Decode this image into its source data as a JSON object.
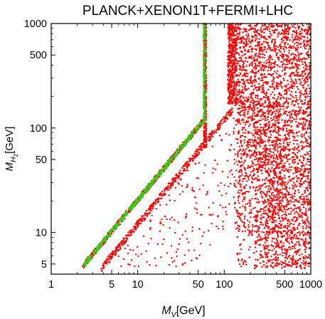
{
  "chart_data": {
    "type": "scatter",
    "title": "PLANCK+XENON1T+FERMI+LHC",
    "xlabel_prefix": "M",
    "xlabel_subscript": "V",
    "xlabel_unit": "[GeV]",
    "ylabel_prefix": "M",
    "ylabel_subscript": "H",
    "ylabel_subsubscript": "2",
    "ylabel_unit": "[GeV]",
    "xscale": "log",
    "yscale": "log",
    "xlim": [
      1,
      1000
    ],
    "ylim": [
      4,
      1000
    ],
    "x_major_ticks": [
      1,
      5,
      10,
      50,
      100,
      500,
      1000
    ],
    "x_tick_labels": [
      "1",
      "5",
      "10",
      "50",
      "100",
      "500",
      "1000"
    ],
    "y_major_ticks": [
      5,
      10,
      50,
      100,
      500,
      1000
    ],
    "y_tick_labels": [
      "5",
      "10",
      "50",
      "100",
      "500",
      "1000"
    ],
    "grid": false,
    "legend": "none",
    "series": [
      {
        "color": "#ff0000"
      },
      {
        "color": "#33cc11"
      }
    ]
  }
}
